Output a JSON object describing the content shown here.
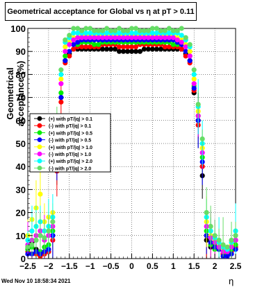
{
  "title": "Geometrical acceptance for Global vs   η at pT > 0.11",
  "timestamp": "Wed Nov 10 18:58:34 2021",
  "chart_data": {
    "type": "scatter",
    "title": "Geometrical acceptance for Global vs   η at pT > 0.11",
    "xlabel": "η",
    "ylabel": "Geometrical acceptance (%)",
    "xlim": [
      -2.5,
      2.5
    ],
    "ylim": [
      0,
      100
    ],
    "xticks": [
      "−2.5",
      "−2",
      "−1.5",
      "−1",
      "−0.5",
      "0",
      "0.5",
      "1",
      "1.5",
      "2",
      "2.5"
    ],
    "yticks": [
      "0",
      "10",
      "20",
      "30",
      "40",
      "50",
      "60",
      "70",
      "80",
      "90",
      "100"
    ],
    "grid": true,
    "legend_position": "middle-left",
    "x": [
      -2.5,
      -2.4,
      -2.3,
      -2.2,
      -2.1,
      -2.0,
      -1.9,
      -1.8,
      -1.7,
      -1.6,
      -1.5,
      -1.4,
      -1.3,
      -1.2,
      -1.1,
      -1.0,
      -0.9,
      -0.8,
      -0.7,
      -0.6,
      -0.5,
      -0.4,
      -0.3,
      -0.2,
      -0.1,
      0.0,
      0.1,
      0.2,
      0.3,
      0.4,
      0.5,
      0.6,
      0.7,
      0.8,
      0.9,
      1.0,
      1.1,
      1.2,
      1.3,
      1.4,
      1.5,
      1.6,
      1.7,
      1.8,
      1.9,
      2.0,
      2.1,
      2.2,
      2.3,
      2.4,
      2.5
    ],
    "series": [
      {
        "name": "(+) with pT/|q| > 0.1",
        "color": "#000000",
        "values": [
          5,
          7,
          4,
          3,
          2,
          3,
          10,
          40,
          70,
          86,
          89,
          91,
          91,
          91,
          91,
          91,
          91,
          91,
          91,
          91,
          91,
          91,
          90,
          90,
          90,
          90,
          90,
          90,
          91,
          91,
          91,
          91,
          91,
          91,
          91,
          91,
          91,
          91,
          89,
          86,
          72,
          60,
          36,
          8,
          5,
          6,
          4,
          2,
          2,
          5,
          8
        ]
      },
      {
        "name": "(-) with pT/|q| > 0.1",
        "color": "#ff0000",
        "values": [
          3,
          2,
          2,
          1,
          2,
          3,
          8,
          38,
          68,
          85,
          88,
          91,
          92,
          92,
          92,
          92,
          92,
          92,
          93,
          93,
          93,
          93,
          92,
          92,
          92,
          92,
          92,
          93,
          93,
          93,
          93,
          93,
          93,
          92,
          92,
          92,
          92,
          91,
          88,
          85,
          73,
          58,
          40,
          10,
          6,
          5,
          4,
          2,
          1,
          3,
          5
        ]
      },
      {
        "name": "(+) with pT/|q| > 0.5",
        "color": "#00ee00",
        "values": [
          4,
          5,
          8,
          3,
          5,
          6,
          12,
          45,
          72,
          88,
          90,
          93,
          93,
          94,
          94,
          94,
          93,
          93,
          94,
          94,
          94,
          94,
          94,
          94,
          94,
          94,
          94,
          94,
          94,
          94,
          94,
          94,
          94,
          94,
          94,
          93,
          93,
          93,
          90,
          88,
          75,
          62,
          44,
          12,
          6,
          4,
          5,
          3,
          2,
          4,
          6
        ]
      },
      {
        "name": "(-) with pT/|q| > 0.5",
        "color": "#0000ff",
        "values": [
          2,
          2,
          3,
          2,
          3,
          4,
          10,
          42,
          70,
          86,
          90,
          93,
          94,
          95,
          95,
          95,
          95,
          95,
          95,
          95,
          95,
          95,
          95,
          95,
          95,
          95,
          95,
          95,
          95,
          95,
          95,
          95,
          95,
          95,
          95,
          95,
          94,
          93,
          90,
          86,
          74,
          60,
          42,
          10,
          7,
          5,
          4,
          1,
          1,
          2,
          4
        ]
      },
      {
        "name": "(+) with pT/|q| > 1.0",
        "color": "#ffff00",
        "values": [
          10,
          17,
          22,
          28,
          16,
          18,
          20,
          50,
          78,
          92,
          94,
          96,
          96,
          97,
          97,
          97,
          97,
          97,
          97,
          97,
          97,
          97,
          97,
          97,
          97,
          97,
          97,
          97,
          97,
          97,
          97,
          97,
          97,
          97,
          97,
          97,
          96,
          95,
          93,
          90,
          78,
          64,
          48,
          16,
          10,
          8,
          6,
          4,
          3,
          6,
          10
        ]
      },
      {
        "name": "(-) with pT/|q| > 1.0",
        "color": "#ff00ff",
        "values": [
          6,
          8,
          10,
          12,
          8,
          10,
          14,
          48,
          76,
          90,
          93,
          95,
          96,
          96,
          96,
          96,
          96,
          96,
          96,
          96,
          96,
          96,
          96,
          96,
          96,
          96,
          96,
          96,
          96,
          96,
          96,
          96,
          96,
          96,
          96,
          96,
          95,
          94,
          92,
          88,
          76,
          62,
          46,
          14,
          9,
          7,
          5,
          3,
          3,
          5,
          8
        ]
      },
      {
        "name": "(+) with pT/|q| > 2.0",
        "color": "#00ffff",
        "values": [
          8,
          12,
          14,
          16,
          12,
          14,
          18,
          52,
          80,
          94,
          96,
          98,
          98,
          98,
          98,
          98,
          98,
          98,
          98,
          98,
          98,
          98,
          98,
          98,
          98,
          98,
          98,
          98,
          98,
          98,
          98,
          98,
          98,
          98,
          98,
          98,
          98,
          97,
          95,
          92,
          80,
          66,
          50,
          18,
          12,
          9,
          7,
          5,
          4,
          7,
          12
        ]
      },
      {
        "name": "(-) with pT/|q| > 2.0",
        "color": "#66dd66",
        "values": [
          5,
          6,
          8,
          10,
          9,
          12,
          16,
          55,
          82,
          95,
          97,
          100,
          100,
          99,
          100,
          100,
          99,
          99,
          99,
          100,
          99,
          99,
          100,
          99,
          99,
          100,
          100,
          99,
          99,
          99,
          100,
          100,
          99,
          99,
          100,
          99,
          99,
          100,
          96,
          93,
          82,
          67,
          52,
          20,
          14,
          10,
          8,
          6,
          5,
          8,
          10
        ]
      }
    ]
  }
}
